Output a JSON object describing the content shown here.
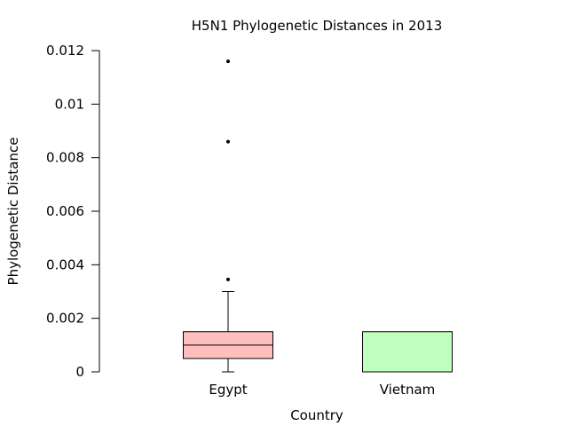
{
  "chart_data": {
    "type": "boxplot",
    "title": "H5N1 Phylogenetic Distances in 2013",
    "xlabel": "Country",
    "ylabel": "Phylogenetic Distance",
    "ylim": [
      0,
      0.012
    ],
    "yticks": [
      0,
      0.002,
      0.004,
      0.006,
      0.008,
      0.01,
      0.012
    ],
    "ytick_labels": [
      "0",
      "0.002",
      "0.004",
      "0.006",
      "0.008",
      "0.01",
      "0.012"
    ],
    "grid": false,
    "categories": [
      "Egypt",
      "Vietnam"
    ],
    "boxes": [
      {
        "category": "Egypt",
        "whisker_low": 0,
        "q1": 0.0005,
        "median": 0.001,
        "q3": 0.0015,
        "whisker_high": 0.003,
        "outliers": [
          0.00345,
          0.0086,
          0.0116
        ],
        "color": "#ffbfbf"
      },
      {
        "category": "Vietnam",
        "whisker_low": 0,
        "q1": 0,
        "median": 0,
        "q3": 0.0015,
        "whisker_high": 0.0015,
        "outliers": [],
        "color": "#bfffbf"
      }
    ]
  }
}
